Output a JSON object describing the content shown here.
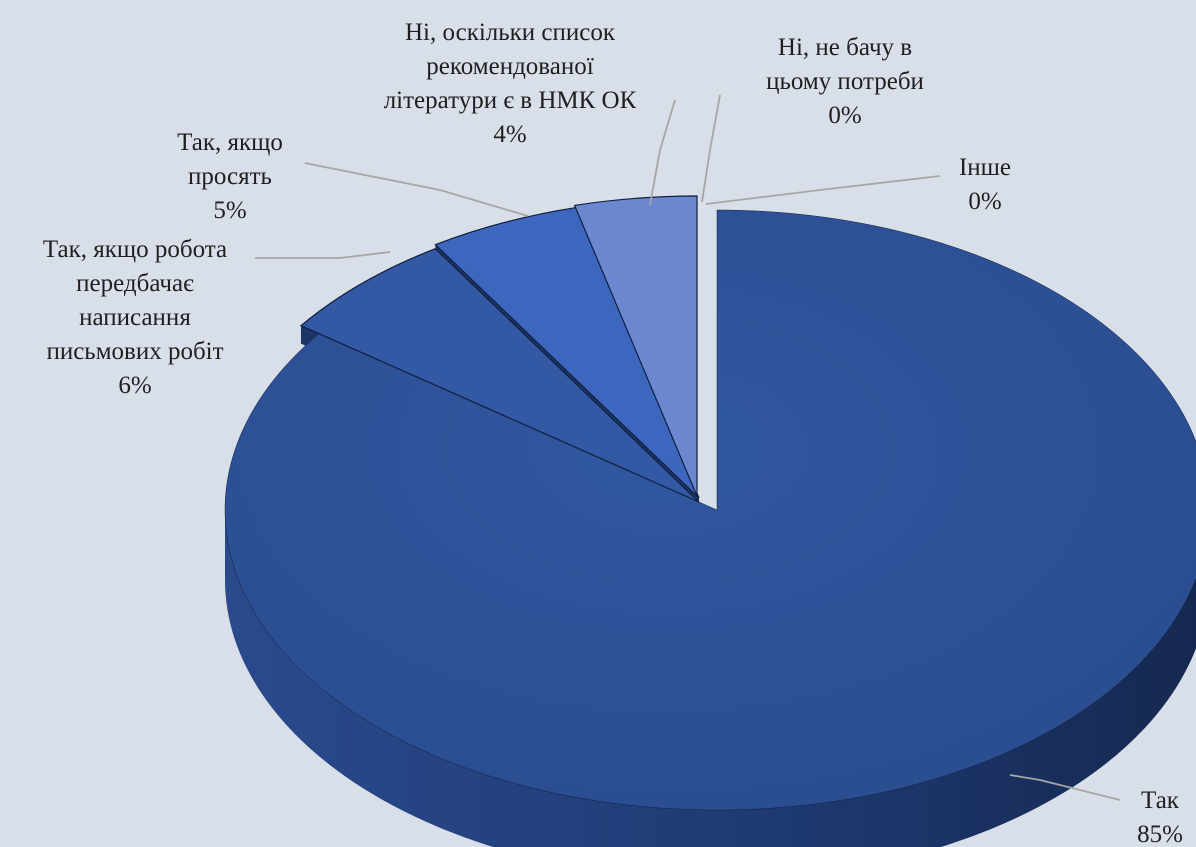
{
  "chart_data": {
    "type": "pie",
    "style": "3d-exploded",
    "title": "",
    "slices": [
      {
        "label": [
          "Так",
          "85%"
        ],
        "category": "Так",
        "value": 85,
        "color": "#2e5195"
      },
      {
        "label": [
          "Так, якщо робота",
          "передбачає",
          "написання",
          "письмових робіт",
          "6%"
        ],
        "category": "Так, якщо робота передбачає написання письмових робіт",
        "value": 6,
        "color": "#3358a4"
      },
      {
        "label": [
          "Так, якщо",
          "просять",
          "5%"
        ],
        "category": "Так, якщо просять",
        "value": 5,
        "color": "#3d66be"
      },
      {
        "label": [
          "Ні, оскільки список",
          "рекомендованої",
          "літератури  є в НМК ОК",
          "4%"
        ],
        "category": "Ні, оскільки список рекомендованої літератури є в НМК ОК",
        "value": 4,
        "color": "#6b87d0"
      },
      {
        "label": [
          "Ні, не бачу в",
          "цьому потреби",
          "0%"
        ],
        "category": "Ні, не бачу в цьому потреби",
        "value": 0,
        "color": "#9db1e0"
      },
      {
        "label": [
          "Інше",
          "0%"
        ],
        "category": "Інше",
        "value": 0,
        "color": "#c5d2ee"
      }
    ],
    "legend": "none",
    "background": "#d9dfe8"
  }
}
